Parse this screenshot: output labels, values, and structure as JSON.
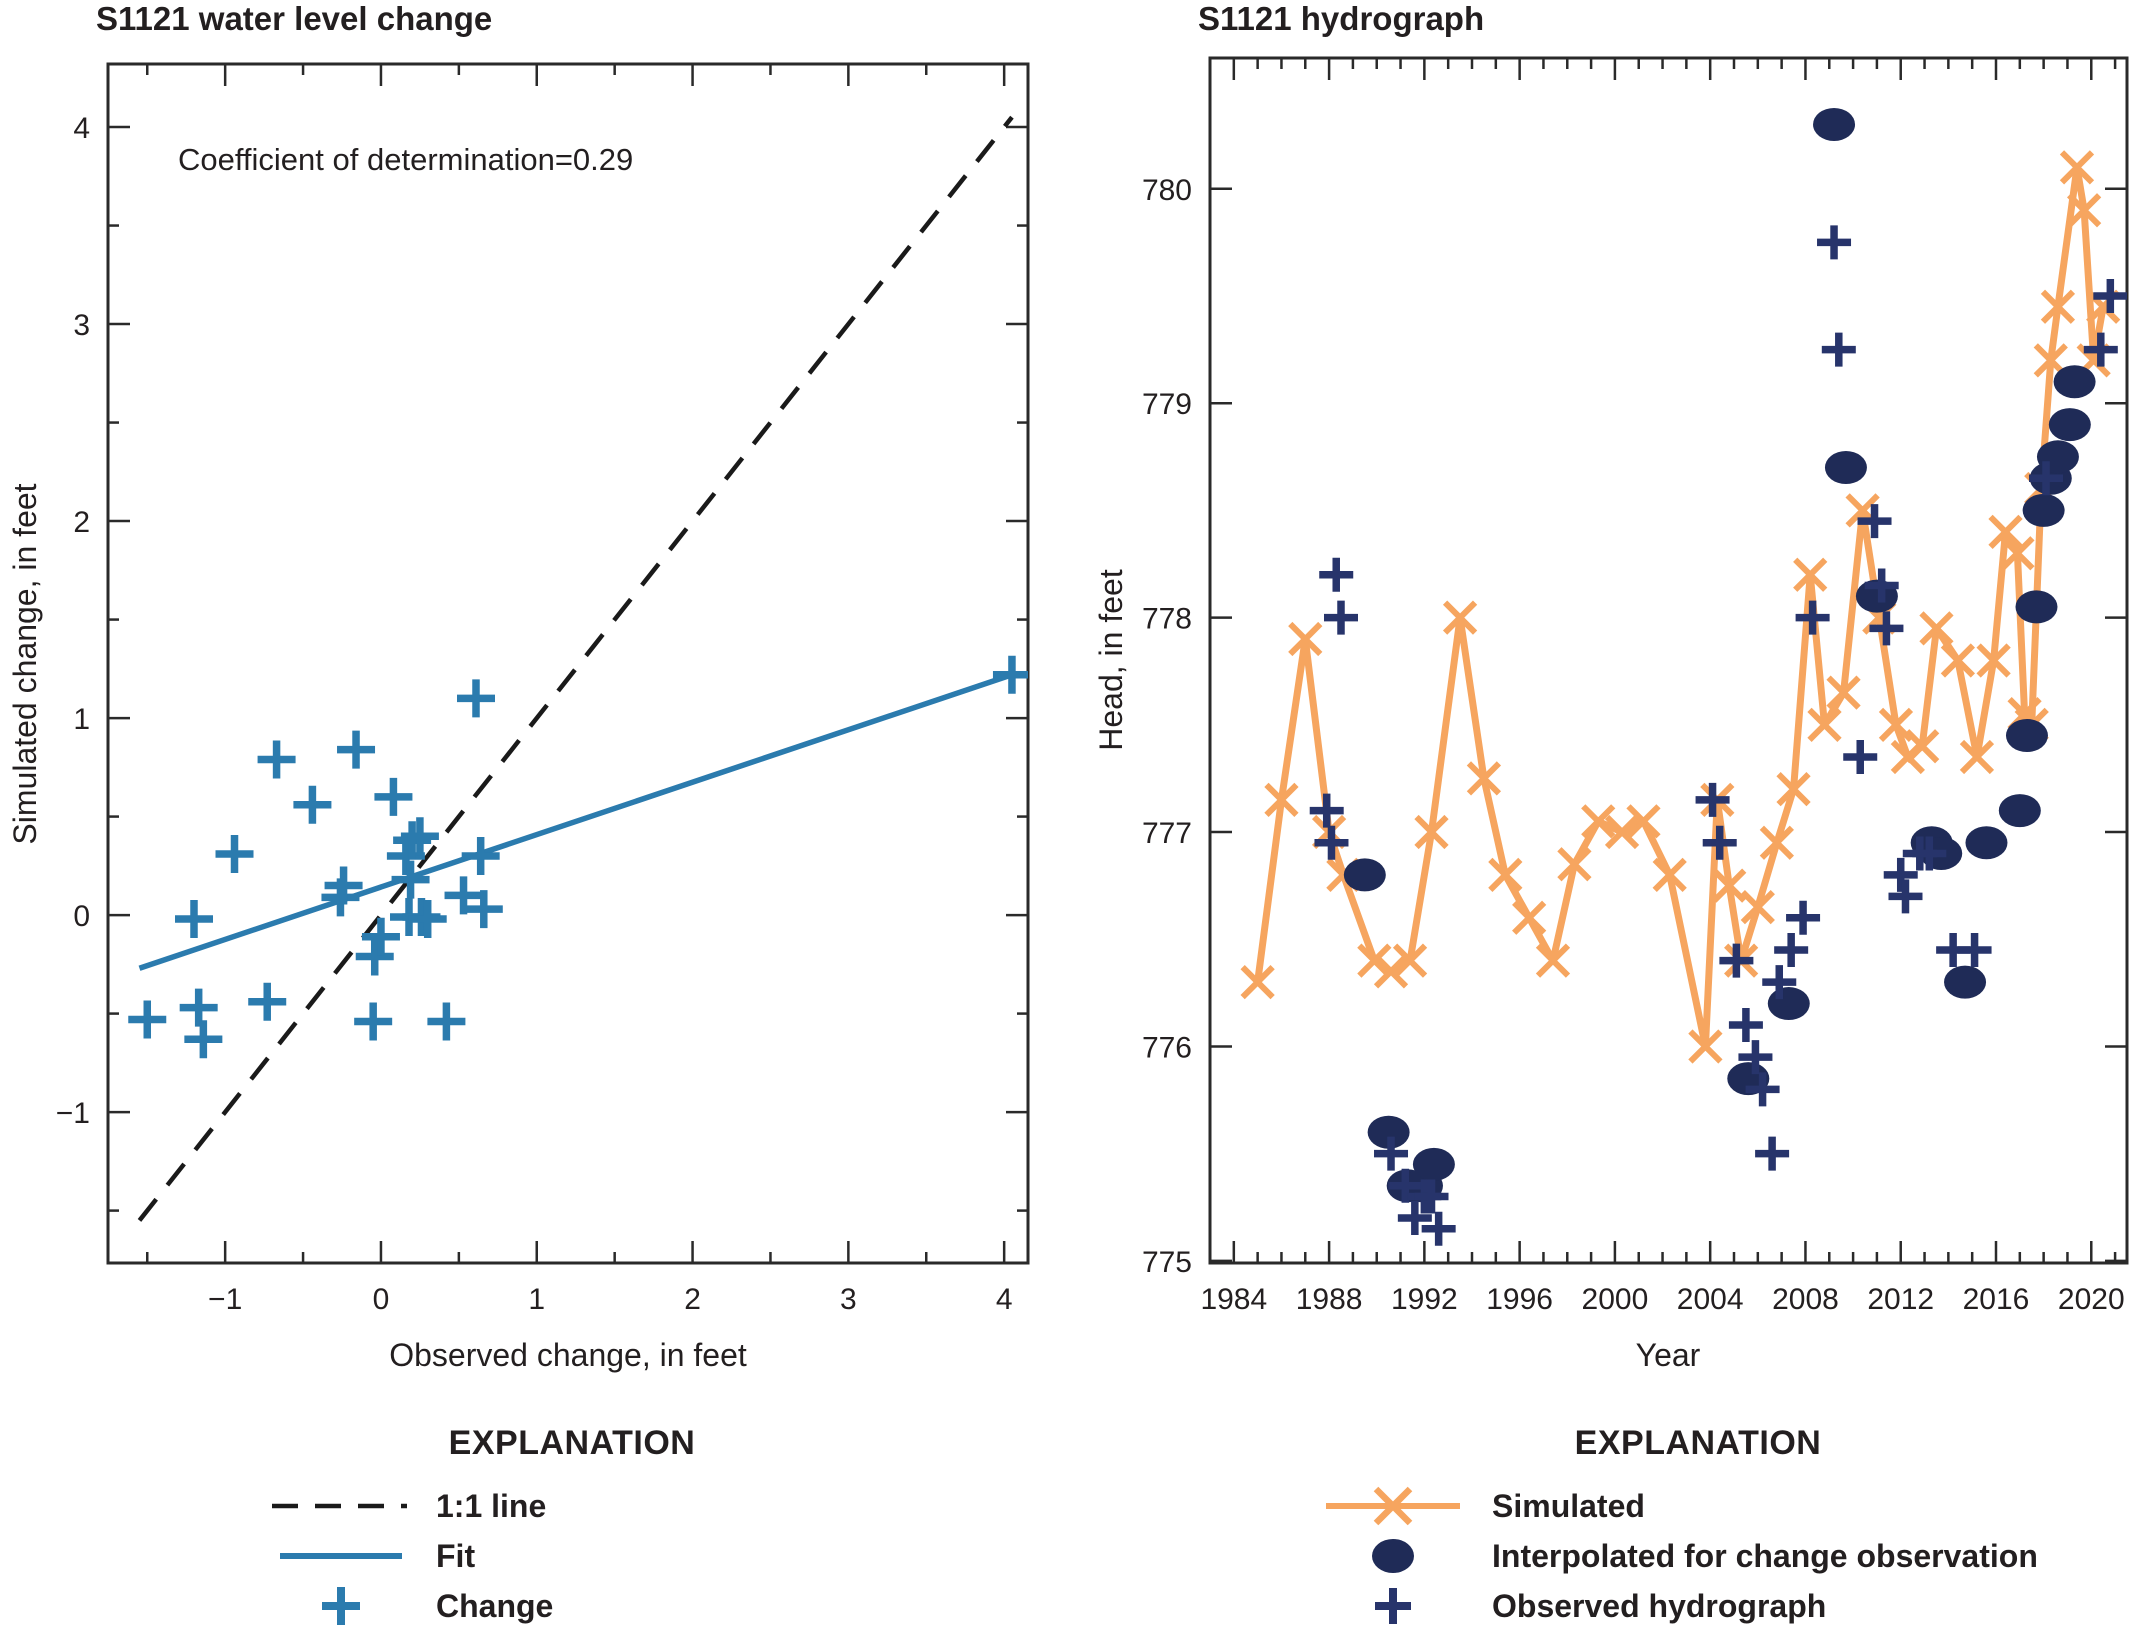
{
  "figure": {
    "background": "#ffffff",
    "text_color": "#231f20"
  },
  "colors": {
    "blue": "#2b7bae",
    "orange": "#f6a55f",
    "navy": "#1f2b57",
    "navy_plus": "#27346b",
    "black_line": "#1a1a1a",
    "axis": "#2a2a2a"
  },
  "left_panel": {
    "title": "S1121 water level change",
    "annotation": "Coefficient of determination=0.29",
    "xlabel": "Observed change, in feet",
    "ylabel": "Simulated change, in feet",
    "legend": {
      "heading": "EXPLANATION",
      "items": [
        {
          "label": "1:1 line",
          "swatch": "dashed-black-line"
        },
        {
          "label": "Fit",
          "swatch": "solid-blue-line"
        },
        {
          "label": "Change",
          "swatch": "blue-plus-marker"
        }
      ]
    }
  },
  "right_panel": {
    "title": "S1121 hydrograph",
    "xlabel": "Year",
    "ylabel": "Head, in feet",
    "legend": {
      "heading": "EXPLANATION",
      "items": [
        {
          "label": "Simulated",
          "swatch": "orange-line-x-marker"
        },
        {
          "label": "Interpolated for change observation",
          "swatch": "navy-circle-marker"
        },
        {
          "label": "Observed hydrograph",
          "swatch": "navy-plus-marker"
        }
      ]
    }
  },
  "chart_data": [
    {
      "type": "scatter",
      "title": "S1121 water level change",
      "annotation": "Coefficient of determination=0.29",
      "xlabel": "Observed change, in feet",
      "ylabel": "Simulated change, in feet",
      "xlim": [
        -1.752,
        4.153
      ],
      "ylim": [
        -1.766,
        4.32
      ],
      "xticks": {
        "values": [
          -1,
          0,
          1,
          2,
          3,
          4
        ],
        "labels": [
          "−1",
          "0",
          "1",
          "2",
          "3",
          "4"
        ],
        "minor_step": 0.5
      },
      "yticks": {
        "values": [
          -1,
          0,
          1,
          2,
          3,
          4
        ],
        "labels": [
          "−1",
          "0",
          "1",
          "2",
          "3",
          "4"
        ],
        "minor_step": 0.5
      },
      "grid": false,
      "legend_position": "below",
      "series": [
        {
          "name": "1:1 line",
          "kind": "dashed-line",
          "points": [
            [
              -1.55,
              -1.55
            ],
            [
              4.05,
              4.05
            ]
          ]
        },
        {
          "name": "Fit",
          "kind": "solid-line",
          "points": [
            [
              -1.55,
              -0.27
            ],
            [
              4.05,
              1.22
            ]
          ]
        },
        {
          "name": "Change",
          "kind": "plus-scatter",
          "points": [
            [
              -1.5,
              -0.53
            ],
            [
              -1.2,
              -0.02
            ],
            [
              -1.17,
              -0.47
            ],
            [
              -1.14,
              -0.63
            ],
            [
              -0.94,
              0.31
            ],
            [
              -0.73,
              -0.44
            ],
            [
              -0.67,
              0.79
            ],
            [
              -0.44,
              0.56
            ],
            [
              -0.26,
              0.09
            ],
            [
              -0.24,
              0.15
            ],
            [
              -0.16,
              0.84
            ],
            [
              -0.05,
              -0.54
            ],
            [
              -0.04,
              -0.21
            ],
            [
              0.0,
              -0.11
            ],
            [
              0.08,
              0.6
            ],
            [
              0.16,
              0.3
            ],
            [
              0.18,
              -0.01
            ],
            [
              0.19,
              0.18
            ],
            [
              0.2,
              0.38
            ],
            [
              0.25,
              0.4
            ],
            [
              0.26,
              -0.01
            ],
            [
              0.3,
              -0.02
            ],
            [
              0.42,
              -0.54
            ],
            [
              0.53,
              0.1
            ],
            [
              0.61,
              1.1
            ],
            [
              0.64,
              0.3
            ],
            [
              0.66,
              0.03
            ],
            [
              4.05,
              1.22
            ]
          ]
        }
      ]
    },
    {
      "type": "line",
      "title": "S1121 hydrograph",
      "xlabel": "Year",
      "ylabel": "Head, in feet",
      "xlim": [
        1983.0,
        2021.5
      ],
      "ylim": [
        774.99,
        780.61
      ],
      "xticks": {
        "values": [
          1984,
          1988,
          1992,
          1996,
          2000,
          2004,
          2008,
          2012,
          2016,
          2020
        ],
        "labels": [
          "1984",
          "1988",
          "1992",
          "1996",
          "2000",
          "2004",
          "2008",
          "2012",
          "2016",
          "2020"
        ],
        "minor_step": 1
      },
      "yticks": {
        "values": [
          775,
          776,
          777,
          778,
          779,
          780
        ],
        "labels": [
          "775",
          "776",
          "777",
          "778",
          "779",
          "780"
        ],
        "minor_step": 0
      },
      "grid": false,
      "legend_position": "below",
      "series": [
        {
          "name": "Simulated",
          "kind": "line-x-marker",
          "points": [
            [
              1985.0,
              776.3
            ],
            [
              1986.0,
              777.15
            ],
            [
              1987.0,
              777.9
            ],
            [
              1988.0,
              777.0
            ],
            [
              1988.6,
              776.8
            ],
            [
              1989.9,
              776.4
            ],
            [
              1990.6,
              776.35
            ],
            [
              1991.4,
              776.4
            ],
            [
              1992.3,
              777.0
            ],
            [
              1993.5,
              778.0
            ],
            [
              1994.5,
              777.25
            ],
            [
              1995.4,
              776.8
            ],
            [
              1996.4,
              776.6
            ],
            [
              1997.4,
              776.4
            ],
            [
              1998.3,
              776.85
            ],
            [
              1999.3,
              777.05
            ],
            [
              2000.3,
              777.0
            ],
            [
              2001.2,
              777.05
            ],
            [
              2002.3,
              776.8
            ],
            [
              2003.8,
              776.0
            ],
            [
              2004.3,
              777.15
            ],
            [
              2004.8,
              776.75
            ],
            [
              2005.3,
              776.4
            ],
            [
              2006.0,
              776.65
            ],
            [
              2006.8,
              776.95
            ],
            [
              2007.5,
              777.2
            ],
            [
              2008.2,
              778.2
            ],
            [
              2008.8,
              777.5
            ],
            [
              2009.6,
              777.65
            ],
            [
              2010.4,
              778.5
            ],
            [
              2011.1,
              778.0
            ],
            [
              2011.8,
              777.5
            ],
            [
              2012.3,
              777.35
            ],
            [
              2012.9,
              777.4
            ],
            [
              2013.5,
              777.95
            ],
            [
              2014.4,
              777.8
            ],
            [
              2015.2,
              777.35
            ],
            [
              2015.9,
              777.8
            ],
            [
              2016.4,
              778.4
            ],
            [
              2016.9,
              778.3
            ],
            [
              2017.2,
              777.55
            ],
            [
              2017.5,
              777.5
            ],
            [
              2017.9,
              778.6
            ],
            [
              2018.3,
              779.2
            ],
            [
              2018.6,
              779.45
            ],
            [
              2019.4,
              780.1
            ],
            [
              2019.7,
              779.9
            ],
            [
              2020.1,
              779.2
            ],
            [
              2020.5,
              779.45
            ]
          ]
        },
        {
          "name": "Interpolated for change observation",
          "kind": "circle-scatter",
          "points": [
            [
              1989.5,
              776.8
            ],
            [
              1990.5,
              775.6
            ],
            [
              1991.3,
              775.35
            ],
            [
              1991.9,
              775.35
            ],
            [
              1992.4,
              775.45
            ],
            [
              2005.6,
              775.85
            ],
            [
              2007.3,
              776.2
            ],
            [
              2009.2,
              780.3
            ],
            [
              2009.7,
              778.7
            ],
            [
              2011.0,
              778.1
            ],
            [
              2013.3,
              776.95
            ],
            [
              2013.7,
              776.9
            ],
            [
              2014.7,
              776.3
            ],
            [
              2015.6,
              776.95
            ],
            [
              2017.0,
              777.1
            ],
            [
              2017.3,
              777.45
            ],
            [
              2017.7,
              778.05
            ],
            [
              2018.0,
              778.5
            ],
            [
              2018.3,
              778.65
            ],
            [
              2018.6,
              778.75
            ],
            [
              2019.1,
              778.9
            ],
            [
              2019.3,
              779.1
            ]
          ]
        },
        {
          "name": "Observed hydrograph",
          "kind": "plus-scatter",
          "points": [
            [
              1987.9,
              777.1
            ],
            [
              1988.1,
              776.95
            ],
            [
              1988.3,
              778.2
            ],
            [
              1988.5,
              778.0
            ],
            [
              1990.6,
              775.5
            ],
            [
              1991.2,
              775.35
            ],
            [
              1991.6,
              775.2
            ],
            [
              1992.0,
              775.3
            ],
            [
              1992.3,
              775.3
            ],
            [
              1992.6,
              775.15
            ],
            [
              2004.1,
              777.15
            ],
            [
              2004.4,
              776.95
            ],
            [
              2005.1,
              776.4
            ],
            [
              2005.5,
              776.1
            ],
            [
              2005.9,
              775.95
            ],
            [
              2006.2,
              775.8
            ],
            [
              2006.6,
              775.5
            ],
            [
              2006.9,
              776.3
            ],
            [
              2007.4,
              776.45
            ],
            [
              2007.9,
              776.6
            ],
            [
              2008.3,
              778.0
            ],
            [
              2009.2,
              779.75
            ],
            [
              2009.4,
              779.25
            ],
            [
              2010.3,
              777.35
            ],
            [
              2010.9,
              778.45
            ],
            [
              2011.2,
              778.15
            ],
            [
              2011.4,
              777.95
            ],
            [
              2012.0,
              776.8
            ],
            [
              2012.2,
              776.7
            ],
            [
              2012.8,
              776.9
            ],
            [
              2013.2,
              776.9
            ],
            [
              2014.2,
              776.45
            ],
            [
              2015.1,
              776.45
            ],
            [
              2018.1,
              778.65
            ],
            [
              2020.4,
              779.25
            ],
            [
              2020.8,
              779.5
            ]
          ]
        }
      ]
    }
  ]
}
